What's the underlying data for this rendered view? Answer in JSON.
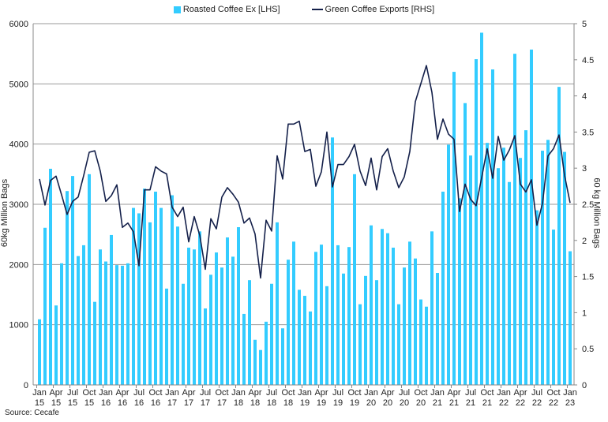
{
  "chart_data": {
    "type": "bar+line",
    "legend": [
      {
        "name": "Roasted Coffee Ex [LHS]",
        "kind": "bar"
      },
      {
        "name": "Green Coffee Exports [RHS]",
        "kind": "line"
      }
    ],
    "legend_position": "top-center",
    "ylabel_left": "60kg Million Bags",
    "ylabel_right": "60 kg Million Bags",
    "ylim_left": [
      0,
      6000
    ],
    "yticks_left": [
      "0",
      "1000",
      "2000",
      "3000",
      "4000",
      "5000",
      "6000"
    ],
    "ylim_right": [
      0,
      5
    ],
    "yticks_right": [
      "0",
      "0.5",
      "1",
      "1.5",
      "2",
      "2.5",
      "3",
      "3.5",
      "4",
      "4.5",
      "5"
    ],
    "grid": true,
    "x_start": "Jan 15",
    "x_end": "Jan 23",
    "xtick_labels": [
      [
        "Jan",
        "15"
      ],
      [
        "Apr",
        "15"
      ],
      [
        "Jul",
        "15"
      ],
      [
        "Oct",
        "15"
      ],
      [
        "Jan",
        "16"
      ],
      [
        "Apr",
        "16"
      ],
      [
        "Jul",
        "16"
      ],
      [
        "Oct",
        "16"
      ],
      [
        "Jan",
        "17"
      ],
      [
        "Apr",
        "17"
      ],
      [
        "Jul",
        "17"
      ],
      [
        "Oct",
        "17"
      ],
      [
        "Jan",
        "18"
      ],
      [
        "Apr",
        "18"
      ],
      [
        "Jul",
        "18"
      ],
      [
        "Oct",
        "18"
      ],
      [
        "Jan",
        "19"
      ],
      [
        "Apr",
        "19"
      ],
      [
        "Jul",
        "19"
      ],
      [
        "Oct",
        "19"
      ],
      [
        "Jan",
        "20"
      ],
      [
        "Apr",
        "20"
      ],
      [
        "Jul",
        "20"
      ],
      [
        "Oct",
        "20"
      ],
      [
        "Jan",
        "21"
      ],
      [
        "Apr",
        "21"
      ],
      [
        "Jul",
        "21"
      ],
      [
        "Oct",
        "21"
      ],
      [
        "Jan",
        "22"
      ],
      [
        "Apr",
        "22"
      ],
      [
        "Jul",
        "22"
      ],
      [
        "Oct",
        "22"
      ],
      [
        "Jan",
        "23"
      ]
    ],
    "series": [
      {
        "name": "Roasted Coffee Ex [LHS]",
        "axis": "left",
        "color": "#33ccff",
        "values": [
          1090,
          2610,
          3590,
          1320,
          2020,
          3220,
          3470,
          2140,
          2320,
          3500,
          1380,
          2250,
          2050,
          2490,
          1990,
          1980,
          2020,
          2940,
          2850,
          3260,
          2700,
          3210,
          2940,
          1600,
          3150,
          2630,
          1680,
          2280,
          2250,
          2550,
          1270,
          1830,
          2200,
          1950,
          2450,
          2130,
          2620,
          1180,
          1740,
          750,
          580,
          1050,
          1680,
          2700,
          940,
          2080,
          2380,
          1580,
          1480,
          1220,
          2210,
          2330,
          1640,
          4110,
          2320,
          1850,
          2290,
          3500,
          1340,
          1810,
          2650,
          1740,
          2590,
          2520,
          2280,
          1340,
          1950,
          2380,
          2100,
          1420,
          1300,
          2550,
          1860,
          3210,
          3990,
          5200,
          3100,
          4680,
          3810,
          5410,
          5850,
          4020,
          5240,
          3600,
          3940,
          3370,
          5500,
          3770,
          4230,
          5570,
          2900,
          3890,
          4070,
          2580,
          4950,
          3870,
          2220
        ]
      },
      {
        "name": "Green Coffee Exports [RHS]",
        "axis": "right",
        "color": "#14204a",
        "values": [
          2.85,
          2.49,
          2.83,
          2.89,
          2.63,
          2.36,
          2.54,
          2.6,
          2.9,
          3.22,
          3.24,
          2.96,
          2.54,
          2.62,
          2.77,
          2.18,
          2.24,
          2.12,
          1.65,
          2.7,
          2.7,
          3.02,
          2.96,
          2.92,
          2.46,
          2.33,
          2.46,
          1.98,
          2.33,
          2.07,
          1.6,
          2.3,
          2.16,
          2.6,
          2.73,
          2.64,
          2.53,
          2.24,
          2.31,
          2.09,
          1.48,
          2.28,
          2.13,
          3.17,
          2.85,
          3.61,
          3.61,
          3.65,
          3.23,
          3.26,
          2.75,
          2.95,
          3.5,
          2.74,
          3.05,
          3.05,
          3.16,
          3.33,
          2.96,
          2.76,
          3.14,
          2.7,
          3.16,
          3.27,
          2.96,
          2.73,
          2.88,
          3.23,
          3.92,
          4.17,
          4.42,
          4.05,
          3.4,
          3.68,
          3.47,
          3.4,
          2.4,
          2.78,
          2.57,
          2.48,
          2.87,
          3.27,
          2.86,
          3.44,
          3.11,
          3.25,
          3.45,
          2.78,
          2.67,
          2.84,
          2.21,
          2.51,
          3.17,
          3.27,
          3.46,
          2.9,
          2.52
        ]
      }
    ]
  },
  "source": "Source: Cecafe"
}
